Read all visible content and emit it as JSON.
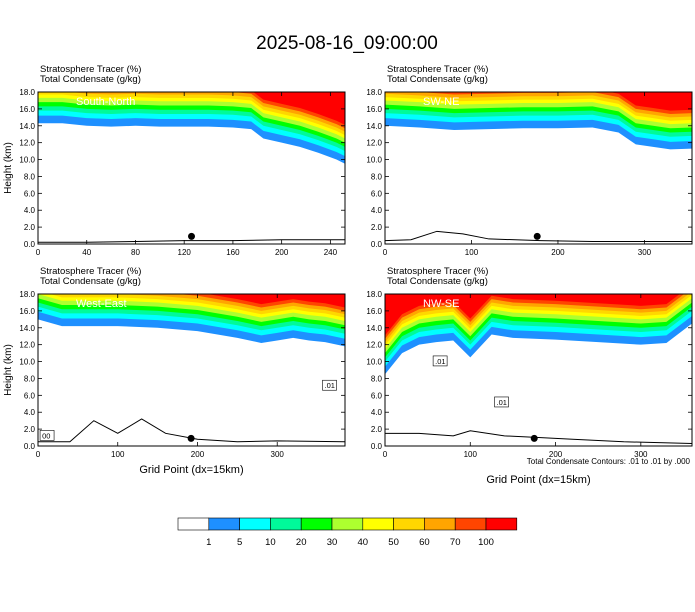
{
  "figure": {
    "title": "2025-08-16_09:00:00",
    "footnote": "Total Condensate Contours: .01 to .01 by .000",
    "xlabel": "Grid Point (dx=15km)"
  },
  "colorbar": {
    "labels": [
      "1",
      "5",
      "10",
      "20",
      "30",
      "40",
      "50",
      "60",
      "70",
      "100"
    ],
    "colors": [
      "#ffffff",
      "#1e90ff",
      "#00ffff",
      "#00fa9a",
      "#00ff00",
      "#adff2f",
      "#ffff00",
      "#ffd700",
      "#ffa500",
      "#ff4500",
      "#ff0000"
    ]
  },
  "chart_data": [
    {
      "type": "heatmap",
      "label": "South-North",
      "header_line1": "Stratosphere Tracer   (%)",
      "header_line2": "Total Condensate   (g/kg)",
      "ylabel": "Height (km)",
      "xlabel": "",
      "xlim": [
        0,
        252
      ],
      "xticks": [
        "0",
        "40",
        "80",
        "120",
        "160",
        "200",
        "240"
      ],
      "xtick_values": [
        0,
        40,
        80,
        120,
        160,
        200,
        240
      ],
      "ylim": [
        0,
        18
      ],
      "yticks": [
        "0.0",
        "2.0",
        "4.0",
        "6.0",
        "8.0",
        "10.0",
        "12.0",
        "14.0",
        "16.0",
        "18.0"
      ],
      "tropopause": {
        "x": [
          0,
          20,
          40,
          60,
          80,
          100,
          120,
          140,
          160,
          175,
          185,
          200,
          215,
          230,
          245,
          252
        ],
        "y": [
          14.3,
          14.3,
          14.0,
          13.9,
          14.0,
          13.9,
          13.9,
          13.9,
          13.8,
          13.6,
          12.5,
          12.0,
          11.5,
          10.8,
          10.0,
          9.5
        ]
      },
      "terrain": {
        "x": [
          0,
          40,
          80,
          120,
          160,
          200,
          240,
          252
        ],
        "y": [
          0.2,
          0.2,
          0.3,
          0.4,
          0.4,
          0.5,
          0.5,
          0.5
        ]
      },
      "marker_x": 126
    },
    {
      "type": "heatmap",
      "label": "SW-NE",
      "header_line1": "Stratosphere Tracer   (%)",
      "header_line2": "Total Condensate   (g/kg)",
      "ylabel": "",
      "xlabel": "",
      "xlim": [
        0,
        355
      ],
      "xticks": [
        "0",
        "100",
        "200",
        "300"
      ],
      "xtick_values": [
        0,
        100,
        200,
        300
      ],
      "ylim": [
        0,
        18
      ],
      "yticks": [
        "0.0",
        "2.0",
        "4.0",
        "6.0",
        "8.0",
        "10.0",
        "12.0",
        "14.0",
        "16.0",
        "18.0"
      ],
      "tropopause": {
        "x": [
          0,
          40,
          80,
          120,
          160,
          200,
          240,
          270,
          290,
          310,
          330,
          355
        ],
        "y": [
          14.0,
          13.8,
          13.5,
          13.6,
          13.7,
          13.7,
          13.8,
          13.2,
          11.8,
          11.5,
          11.2,
          11.3
        ]
      },
      "terrain": {
        "x": [
          0,
          30,
          60,
          90,
          120,
          180,
          240,
          300,
          355
        ],
        "y": [
          0.4,
          0.5,
          1.5,
          1.2,
          0.6,
          0.4,
          0.3,
          0.3,
          0.3
        ]
      },
      "marker_x": 176
    },
    {
      "type": "heatmap",
      "label": "West-East",
      "header_line1": "Stratosphere Tracer   (%)",
      "header_line2": "Total Condensate   (g/kg)",
      "ylabel": "Height (km)",
      "xlabel": "Grid Point (dx=15km)",
      "xlim": [
        0,
        385
      ],
      "xticks": [
        "0",
        "100",
        "200",
        "300"
      ],
      "xtick_values": [
        0,
        100,
        200,
        300
      ],
      "ylim": [
        0,
        18
      ],
      "yticks": [
        "0.0",
        "2.0",
        "4.0",
        "6.0",
        "8.0",
        "10.0",
        "12.0",
        "14.0",
        "16.0",
        "18.0"
      ],
      "tropopause": {
        "x": [
          0,
          30,
          60,
          100,
          150,
          200,
          250,
          280,
          300,
          320,
          340,
          360,
          385
        ],
        "y": [
          15.0,
          14.2,
          14.2,
          14.2,
          14.0,
          13.6,
          12.8,
          12.2,
          12.5,
          12.8,
          12.5,
          12.3,
          11.8
        ]
      },
      "terrain": {
        "x": [
          0,
          40,
          70,
          100,
          130,
          160,
          200,
          250,
          300,
          385
        ],
        "y": [
          0.5,
          0.5,
          3.0,
          1.5,
          3.2,
          1.5,
          0.8,
          0.5,
          0.6,
          0.5
        ]
      },
      "marker_x": 192,
      "contour_labels": [
        ".01",
        "00"
      ]
    },
    {
      "type": "heatmap",
      "label": "NW-SE",
      "header_line1": "Stratosphere Tracer   (%)",
      "header_line2": "Total Condensate   (g/kg)",
      "ylabel": "",
      "xlabel": "Grid Point (dx=15km)",
      "xlim": [
        0,
        360
      ],
      "xticks": [
        "0",
        "100",
        "200",
        "300"
      ],
      "xtick_values": [
        0,
        100,
        200,
        300
      ],
      "ylim": [
        0,
        18
      ],
      "yticks": [
        "0.0",
        "2.0",
        "4.0",
        "6.0",
        "8.0",
        "10.0",
        "12.0",
        "14.0",
        "16.0",
        "18.0"
      ],
      "tropopause": {
        "x": [
          0,
          20,
          40,
          60,
          80,
          100,
          125,
          150,
          200,
          250,
          300,
          330,
          360
        ],
        "y": [
          8.5,
          11.0,
          12.0,
          12.3,
          12.5,
          10.5,
          13.2,
          12.8,
          12.6,
          12.3,
          12.0,
          12.2,
          14.5
        ]
      },
      "terrain": {
        "x": [
          0,
          40,
          80,
          100,
          140,
          180,
          220,
          280,
          360
        ],
        "y": [
          1.5,
          1.5,
          1.2,
          1.8,
          1.2,
          1.0,
          0.8,
          0.5,
          0.3
        ]
      },
      "marker_x": 175,
      "contour_labels": [
        ".01",
        ".01"
      ]
    }
  ]
}
